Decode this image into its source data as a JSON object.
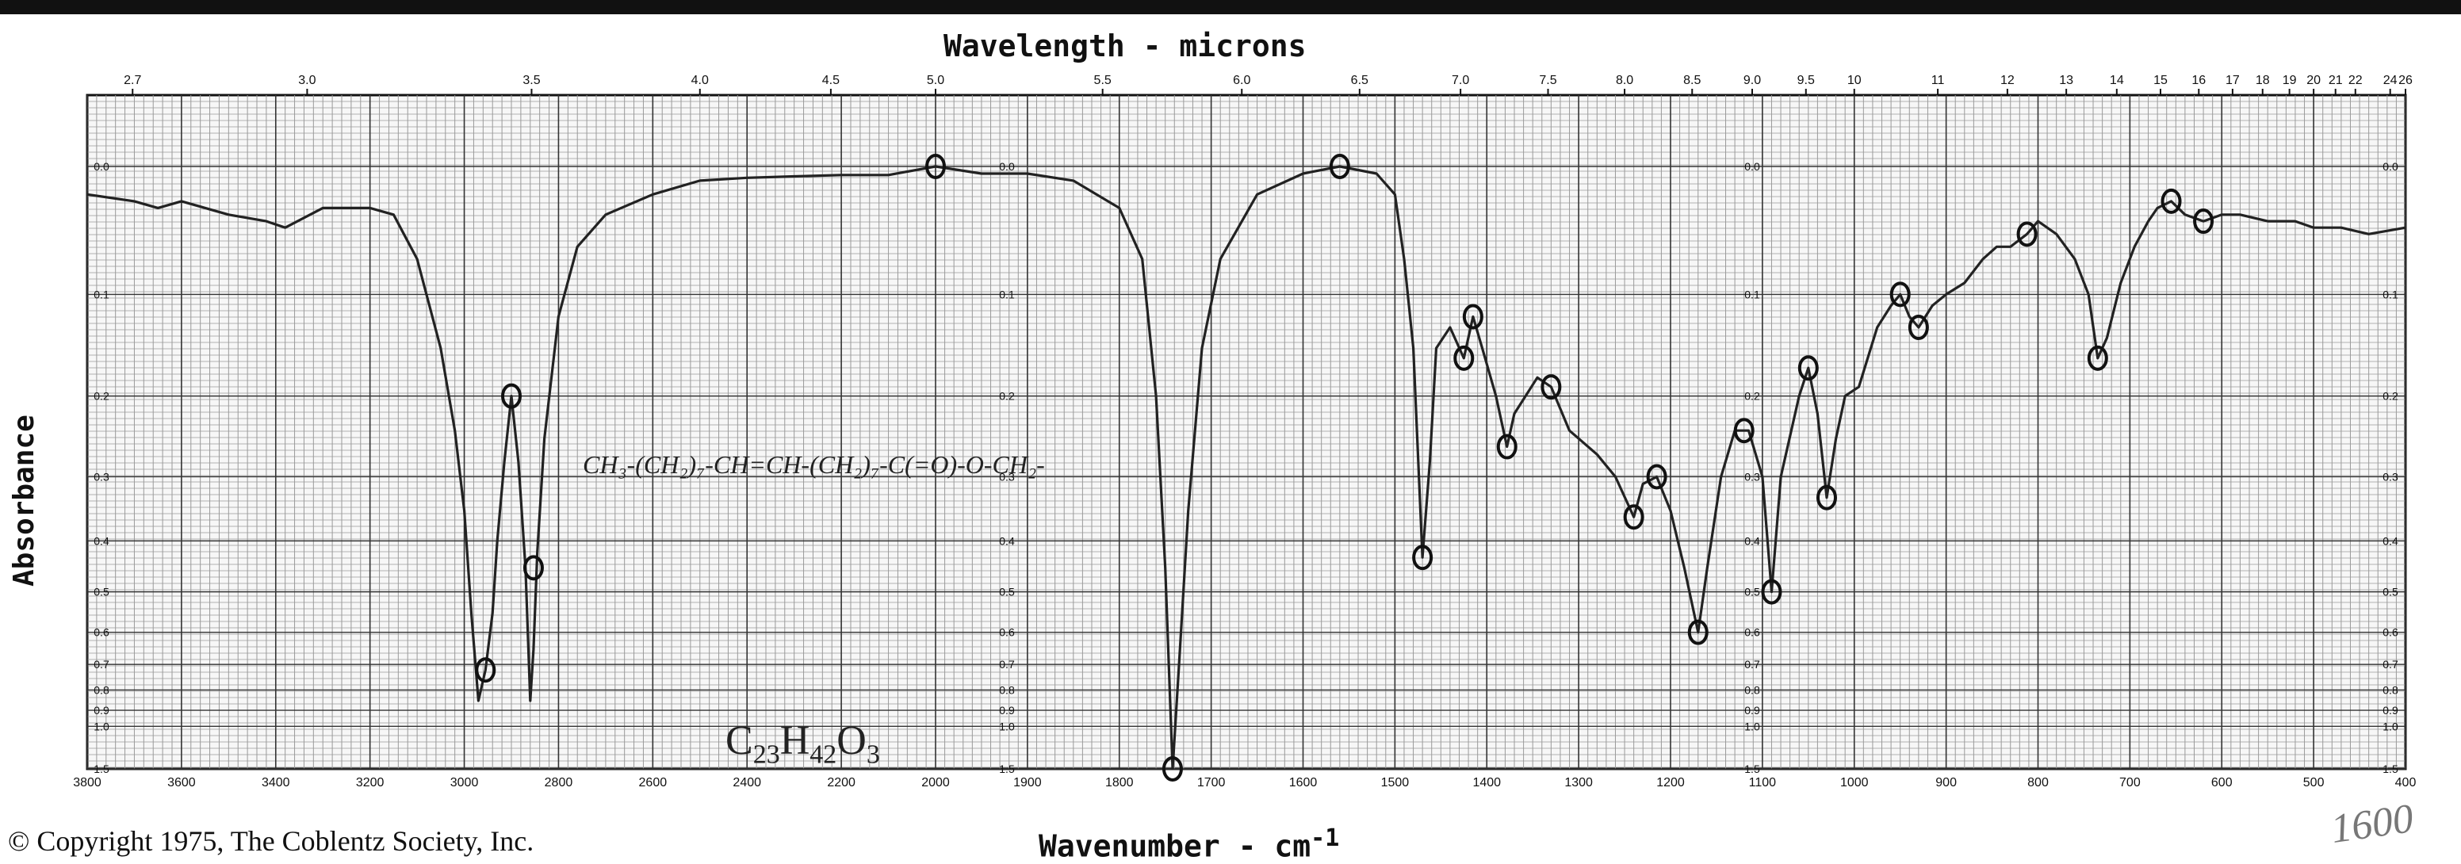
{
  "chart_data": {
    "type": "line",
    "title": "Wavelength - microns",
    "xlabel": "Wavenumber - cm",
    "xlabel_superscript": "-1",
    "ylabel": "Absorbance",
    "x_axis_bottom": {
      "unit": "cm-1",
      "range": [
        3800,
        400
      ],
      "tick_labels": [
        "3800",
        "3600",
        "3400",
        "3200",
        "3000",
        "2800",
        "2600",
        "2400",
        "2200",
        "2000",
        "1900",
        "1800",
        "1700",
        "1600",
        "1500",
        "1400",
        "1300",
        "1200",
        "1100",
        "1000",
        "900",
        "800",
        "700",
        "600",
        "500",
        "400"
      ]
    },
    "x_axis_top": {
      "unit": "microns",
      "tick_labels": [
        "2.7",
        "3.0",
        "3.5",
        "4.0",
        "4.5",
        "5.0",
        "5.5",
        "6.0",
        "6.5",
        "7.0",
        "7.5",
        "8.0",
        "8.5",
        "9.0",
        "9.5",
        "10",
        "11",
        "12",
        "13",
        "14",
        "15",
        "16",
        "17",
        "18",
        "19",
        "20",
        "21",
        "22",
        "24",
        "26"
      ]
    },
    "y_axis": {
      "scale": "absorbance",
      "range": [
        0.0,
        1.5
      ],
      "tick_labels": [
        "0.0",
        "0.1",
        "0.2",
        "0.3",
        "0.4",
        "0.5",
        "0.6",
        "0.7",
        "0.8",
        "0.9",
        "1.0",
        "1.5"
      ]
    },
    "grid": true,
    "series": [
      {
        "points": [
          [
            3800,
            0.02
          ],
          [
            3700,
            0.025
          ],
          [
            3650,
            0.03
          ],
          [
            3600,
            0.025
          ],
          [
            3500,
            0.035
          ],
          [
            3420,
            0.04
          ],
          [
            3380,
            0.045
          ],
          [
            3300,
            0.03
          ],
          [
            3200,
            0.03
          ],
          [
            3150,
            0.035
          ],
          [
            3100,
            0.07
          ],
          [
            3050,
            0.15
          ],
          [
            3020,
            0.24
          ],
          [
            3000,
            0.35
          ],
          [
            2985,
            0.55
          ],
          [
            2970,
            0.85
          ],
          [
            2955,
            0.72
          ],
          [
            2940,
            0.55
          ],
          [
            2930,
            0.4
          ],
          [
            2915,
            0.28
          ],
          [
            2900,
            0.2
          ],
          [
            2885,
            0.28
          ],
          [
            2870,
            0.45
          ],
          [
            2860,
            0.85
          ],
          [
            2853,
            0.65
          ],
          [
            2845,
            0.42
          ],
          [
            2830,
            0.25
          ],
          [
            2800,
            0.12
          ],
          [
            2760,
            0.06
          ],
          [
            2700,
            0.035
          ],
          [
            2600,
            0.02
          ],
          [
            2500,
            0.01
          ],
          [
            2400,
            0.008
          ],
          [
            2300,
            0.007
          ],
          [
            2200,
            0.006
          ],
          [
            2100,
            0.006
          ],
          [
            2000,
            0.0
          ],
          [
            1950,
            0.005
          ],
          [
            1900,
            0.005
          ],
          [
            1850,
            0.01
          ],
          [
            1800,
            0.03
          ],
          [
            1775,
            0.07
          ],
          [
            1760,
            0.2
          ],
          [
            1750,
            0.45
          ],
          [
            1742,
            1.5
          ],
          [
            1735,
            0.7
          ],
          [
            1725,
            0.35
          ],
          [
            1710,
            0.15
          ],
          [
            1690,
            0.07
          ],
          [
            1650,
            0.02
          ],
          [
            1600,
            0.005
          ],
          [
            1560,
            0.0
          ],
          [
            1520,
            0.005
          ],
          [
            1500,
            0.02
          ],
          [
            1490,
            0.07
          ],
          [
            1480,
            0.15
          ],
          [
            1470,
            0.43
          ],
          [
            1462,
            0.28
          ],
          [
            1455,
            0.15
          ],
          [
            1440,
            0.13
          ],
          [
            1425,
            0.16
          ],
          [
            1415,
            0.12
          ],
          [
            1405,
            0.15
          ],
          [
            1390,
            0.2
          ],
          [
            1378,
            0.26
          ],
          [
            1370,
            0.22
          ],
          [
            1345,
            0.18
          ],
          [
            1330,
            0.19
          ],
          [
            1310,
            0.24
          ],
          [
            1280,
            0.27
          ],
          [
            1260,
            0.3
          ],
          [
            1240,
            0.36
          ],
          [
            1230,
            0.31
          ],
          [
            1215,
            0.3
          ],
          [
            1200,
            0.35
          ],
          [
            1185,
            0.45
          ],
          [
            1170,
            0.6
          ],
          [
            1160,
            0.45
          ],
          [
            1145,
            0.3
          ],
          [
            1130,
            0.24
          ],
          [
            1115,
            0.24
          ],
          [
            1100,
            0.3
          ],
          [
            1090,
            0.5
          ],
          [
            1080,
            0.3
          ],
          [
            1060,
            0.2
          ],
          [
            1050,
            0.17
          ],
          [
            1040,
            0.22
          ],
          [
            1030,
            0.33
          ],
          [
            1020,
            0.25
          ],
          [
            1010,
            0.2
          ],
          [
            995,
            0.19
          ],
          [
            975,
            0.13
          ],
          [
            960,
            0.11
          ],
          [
            950,
            0.1
          ],
          [
            940,
            0.12
          ],
          [
            930,
            0.13
          ],
          [
            915,
            0.11
          ],
          [
            900,
            0.1
          ],
          [
            880,
            0.09
          ],
          [
            860,
            0.07
          ],
          [
            845,
            0.06
          ],
          [
            830,
            0.06
          ],
          [
            812,
            0.05
          ],
          [
            800,
            0.04
          ],
          [
            780,
            0.05
          ],
          [
            760,
            0.07
          ],
          [
            745,
            0.1
          ],
          [
            735,
            0.16
          ],
          [
            725,
            0.14
          ],
          [
            710,
            0.09
          ],
          [
            695,
            0.06
          ],
          [
            680,
            0.04
          ],
          [
            670,
            0.03
          ],
          [
            655,
            0.025
          ],
          [
            640,
            0.035
          ],
          [
            620,
            0.04
          ],
          [
            600,
            0.035
          ],
          [
            580,
            0.035
          ],
          [
            550,
            0.04
          ],
          [
            520,
            0.04
          ],
          [
            500,
            0.045
          ],
          [
            470,
            0.045
          ],
          [
            440,
            0.05
          ],
          [
            400,
            0.045
          ]
        ]
      }
    ],
    "annotations": {
      "structure": "CH₃-(CH₂)₇-CH=CH-(CH₂)₇-C(=O)-O-CH₂-",
      "formula_prefix": "C",
      "formula_c": "23",
      "formula_h_label": "H",
      "formula_h": "42",
      "formula_o_label": "O",
      "formula_o": "3",
      "handwritten_number": "1600"
    },
    "copyright": "© Copyright 1975, The Coblentz Society, Inc."
  },
  "colors": {
    "ink": "#111111",
    "grid_major": "#333333",
    "grid_minor": "#9a9a9a",
    "trace": "#222222"
  }
}
